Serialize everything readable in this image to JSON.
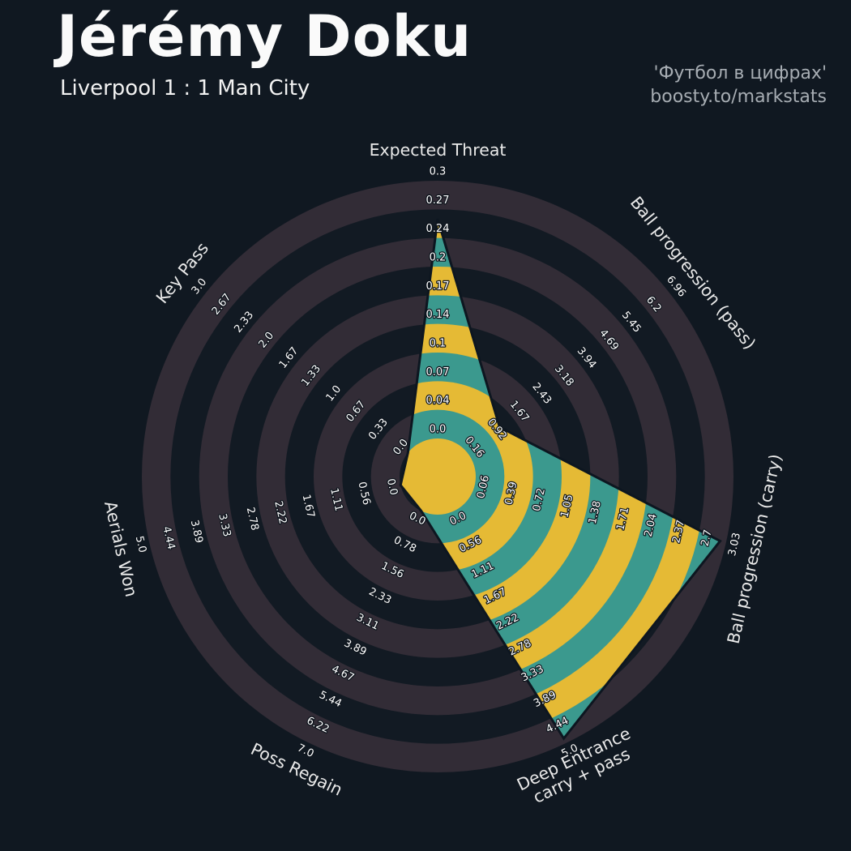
{
  "header": {
    "title": "Jérémy Doku",
    "subtitle": "Liverpool 1 : 1 Man City",
    "credit_line1": "'Футбол в цифрах'",
    "credit_line2": "boosty.to/markstats"
  },
  "chart_data": {
    "type": "radar",
    "player": "Jérémy Doku",
    "match": "Liverpool 1 : 1 Man City",
    "rings": 9,
    "legend_position": "none",
    "grid": "concentric-rings",
    "axes": [
      {
        "label": "Expected Threat",
        "ticks": [
          "0.0",
          "0.04",
          "0.07",
          "0.1",
          "0.14",
          "0.17",
          "0.2",
          "0.24",
          "0.27",
          "0.3"
        ],
        "value": 0.26
      },
      {
        "label": "Ball progression (pass)",
        "ticks": [
          "0.16",
          "0.92",
          "1.67",
          "2.43",
          "3.18",
          "3.94",
          "4.69",
          "5.45",
          "6.2",
          "6.96"
        ],
        "value": 1.25
      },
      {
        "label": "Ball progression (carry)",
        "ticks": [
          "0.06",
          "0.39",
          "0.72",
          "1.05",
          "1.38",
          "1.71",
          "2.04",
          "2.37",
          "2.7",
          "3.03"
        ],
        "value": 2.96
      },
      {
        "label": "Deep Entrance\ncarry + pass",
        "ticks": [
          "0.0",
          "0.56",
          "1.11",
          "1.67",
          "2.22",
          "2.78",
          "3.33",
          "3.89",
          "4.44",
          "5.0"
        ],
        "value": 4.9
      },
      {
        "label": "Poss Regain",
        "ticks": [
          "0.0",
          "0.78",
          "1.56",
          "2.33",
          "3.11",
          "3.89",
          "4.67",
          "5.44",
          "6.22",
          "7.0"
        ],
        "value": 0.0
      },
      {
        "label": "Aerials Won",
        "ticks": [
          "0.0",
          "0.56",
          "1.11",
          "1.67",
          "2.22",
          "2.78",
          "3.33",
          "3.89",
          "4.44",
          "5.0"
        ],
        "value": 0.0
      },
      {
        "label": "Key Pass",
        "ticks": [
          "0.0",
          "0.33",
          "0.67",
          "1.0",
          "1.33",
          "1.67",
          "2.0",
          "2.33",
          "2.67",
          "3.0"
        ],
        "value": 0.0
      }
    ],
    "colors": {
      "background": "#101821",
      "ring_dark": "#121a23",
      "ring_light": "#322c36",
      "slice_teal": "#3b998e",
      "slice_yellow": "#e5ba35",
      "center_circle": "#e5ba35",
      "polygon_edge": "#0d1620",
      "tick_text": "#ffffff",
      "tick_text_outline": "#0e151d",
      "axis_label_text": "#e9e9e9",
      "title_text": "#fafafa",
      "subtitle_text": "#f2f2f2",
      "credit_text": "#a7adb3"
    }
  }
}
